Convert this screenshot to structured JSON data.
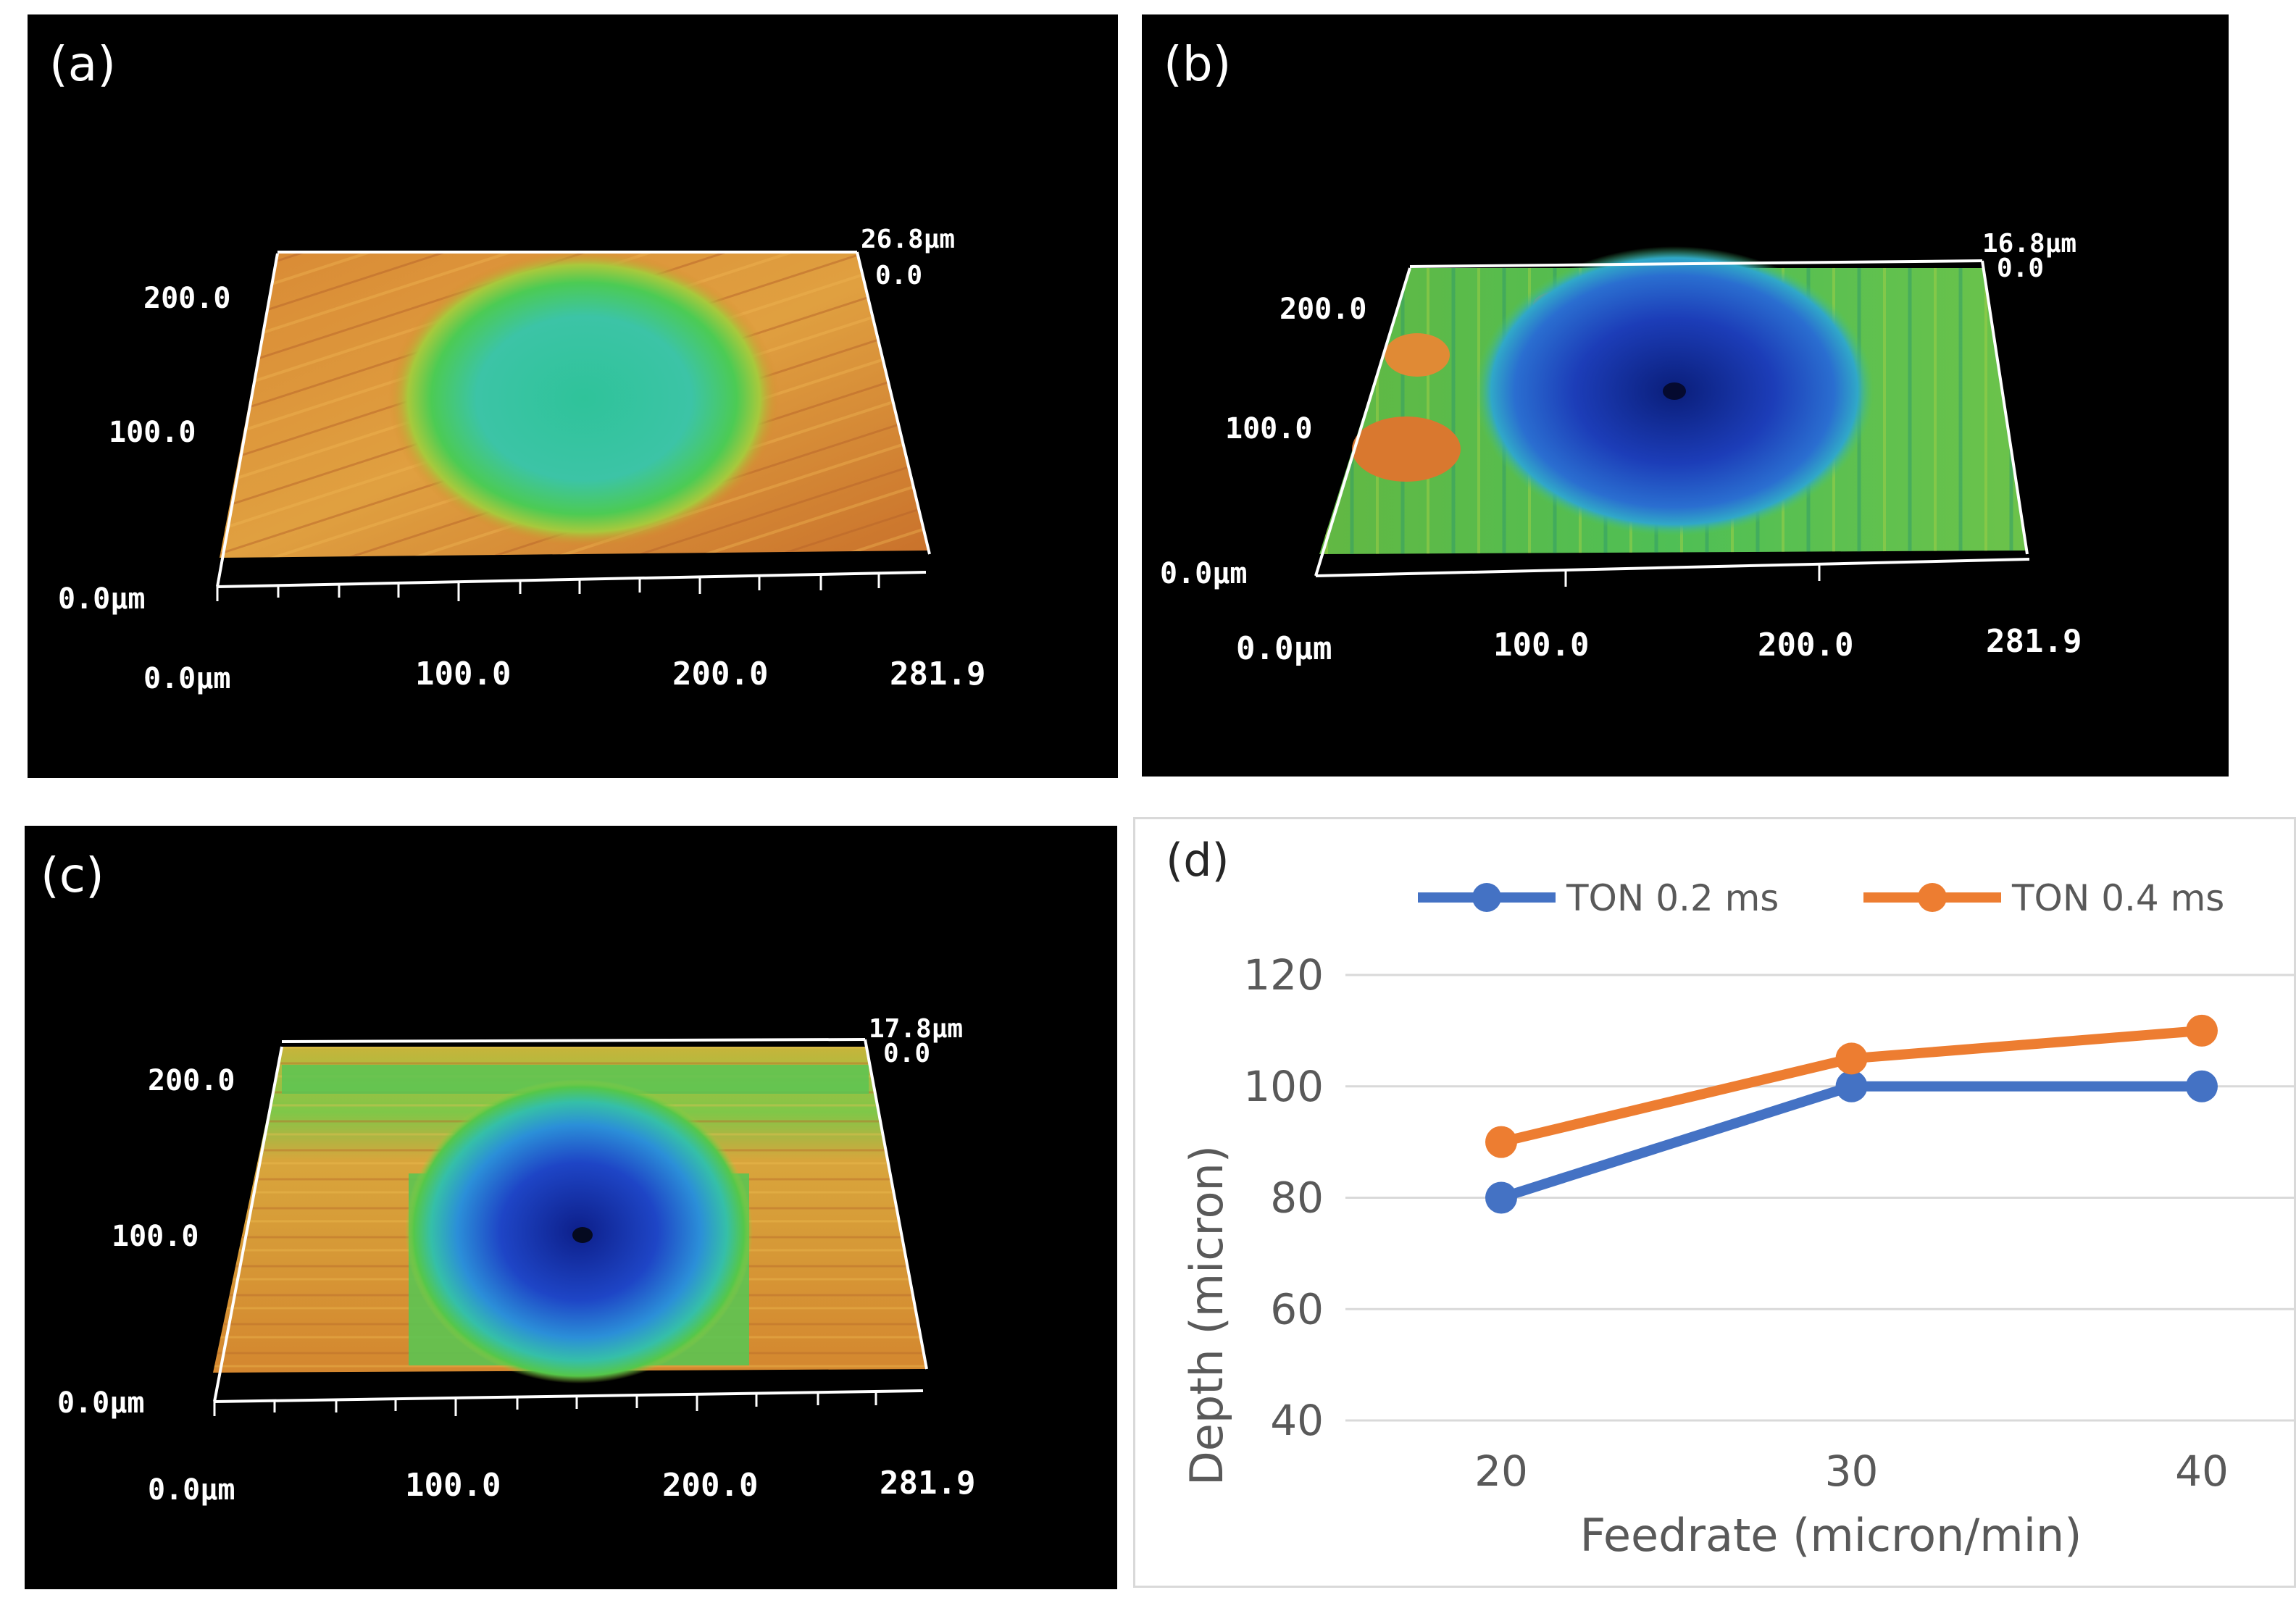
{
  "panels": {
    "a": {
      "label": "(a)",
      "y_ticks": [
        "200.0",
        "100.0",
        "0.0µm"
      ],
      "x_ticks": [
        "0.0µm",
        "100.0",
        "200.0",
        "281.9"
      ],
      "z_top": "26.8µm",
      "z_zero": "0.0"
    },
    "b": {
      "label": "(b)",
      "y_ticks": [
        "200.0",
        "100.0",
        "0.0µm"
      ],
      "x_ticks": [
        "0.0µm",
        "100.0",
        "200.0",
        "281.9"
      ],
      "z_top": "16.8µm",
      "z_zero": "0.0"
    },
    "c": {
      "label": "(c)",
      "y_ticks": [
        "200.0",
        "100.0",
        "0.0µm"
      ],
      "x_ticks": [
        "0.0µm",
        "100.0",
        "200.0",
        "281.9"
      ],
      "z_top": "17.8µm",
      "z_zero": "0.0"
    }
  },
  "chart_data": {
    "type": "line",
    "panel_label": "(d)",
    "title": "",
    "xlabel": "Feedrate (micron/min)",
    "ylabel": "Depth (micron)",
    "categories": [
      "20",
      "30",
      "40"
    ],
    "x": [
      20,
      30,
      40
    ],
    "ylim": [
      40,
      120
    ],
    "yticks": [
      40,
      60,
      80,
      100,
      120
    ],
    "grid": true,
    "legend_position": "top",
    "series": [
      {
        "name": "TON 0.2 ms",
        "color": "#4472c4",
        "values": [
          80,
          100,
          100
        ]
      },
      {
        "name": "TON 0.4 ms",
        "color": "#ed7d31",
        "values": [
          90,
          105,
          110
        ]
      }
    ]
  }
}
